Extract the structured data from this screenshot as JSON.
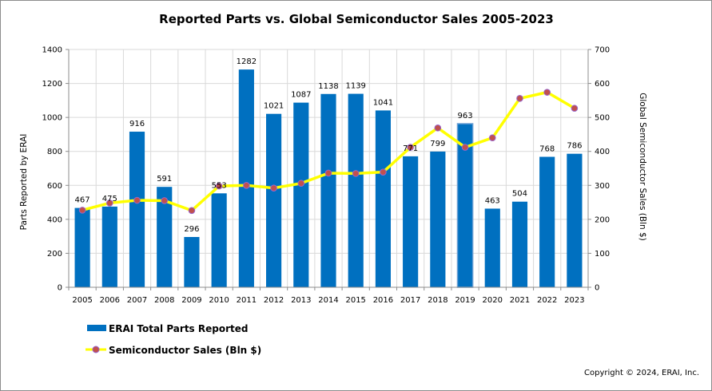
{
  "chart_data": {
    "type": "bar+line",
    "title": "Reported Parts vs. Global Semiconductor Sales 2005-2023",
    "categories": [
      "2005",
      "2006",
      "2007",
      "2008",
      "2009",
      "2010",
      "2011",
      "2012",
      "2013",
      "2014",
      "2015",
      "2016",
      "2017",
      "2018",
      "2019",
      "2020",
      "2021",
      "2022",
      "2023"
    ],
    "series": [
      {
        "name": "ERAI Total Parts Reported",
        "type": "bar",
        "axis": "left",
        "color": "#0070c0",
        "values": [
          467,
          475,
          916,
          591,
          296,
          553,
          1282,
          1021,
          1087,
          1138,
          1139,
          1041,
          771,
          799,
          963,
          463,
          504,
          768,
          786
        ]
      },
      {
        "name": "Semiconductor Sales (Bln $)",
        "type": "line",
        "axis": "right",
        "color": "#ffff00",
        "marker_color": "#c0504d",
        "values": [
          227,
          248,
          256,
          255,
          226,
          298,
          300,
          292,
          306,
          336,
          335,
          339,
          412,
          469,
          412,
          440,
          556,
          574,
          527
        ]
      }
    ],
    "ylabel": "Parts Reported by ERAI",
    "y2label": "Global Semiconductor Sales (Bln $)",
    "ylim": [
      0,
      1400
    ],
    "y2lim": [
      0,
      700
    ],
    "yticks": [
      0,
      200,
      400,
      600,
      800,
      1000,
      1200,
      1400
    ],
    "y2ticks": [
      0,
      100,
      200,
      300,
      400,
      500,
      600,
      700
    ],
    "grid": true,
    "legend_position": "bottom-left",
    "highlight_index": 14,
    "copyright": "Copyright © 2024, ERAI, Inc."
  }
}
